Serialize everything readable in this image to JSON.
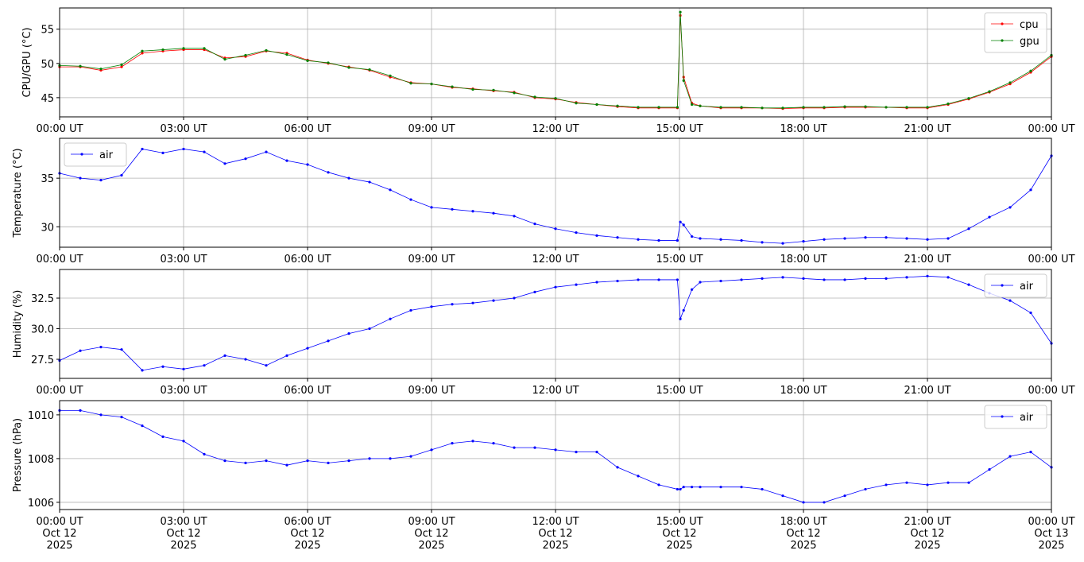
{
  "chart_data": [
    {
      "type": "line",
      "ylabel": "CPU/GPU (°C)",
      "legend": "upper right",
      "grid": true,
      "x": [
        0,
        0.5,
        1,
        1.5,
        2,
        2.5,
        3,
        3.5,
        4,
        4.5,
        5,
        5.5,
        6,
        6.5,
        7,
        7.5,
        8,
        8.5,
        9,
        9.5,
        10,
        10.5,
        11,
        11.5,
        12,
        12.5,
        13,
        13.5,
        14,
        14.5,
        14.95,
        15.02,
        15.1,
        15.3,
        15.5,
        16,
        16.5,
        17,
        17.5,
        18,
        18.5,
        19,
        19.5,
        20,
        20.5,
        21,
        21.5,
        22,
        22.5,
        23,
        23.5,
        24
      ],
      "xlim": [
        0,
        24
      ],
      "xticks": [
        {
          "value": 0,
          "label": "00:00 UT"
        },
        {
          "value": 3,
          "label": "03:00 UT"
        },
        {
          "value": 6,
          "label": "06:00 UT"
        },
        {
          "value": 9,
          "label": "09:00 UT"
        },
        {
          "value": 12,
          "label": "12:00 UT"
        },
        {
          "value": 15,
          "label": "15:00 UT"
        },
        {
          "value": 18,
          "label": "18:00 UT"
        },
        {
          "value": 21,
          "label": "21:00 UT"
        },
        {
          "value": 24,
          "label": "00:00 UT"
        }
      ],
      "ylim": [
        42.2,
        58.1
      ],
      "yticks": [
        45,
        50,
        55
      ],
      "series": [
        {
          "name": "cpu",
          "color": "#ff0000",
          "values": [
            49.5,
            49.5,
            49,
            49.5,
            51.5,
            51.8,
            52,
            52,
            50.8,
            51,
            51.8,
            51.5,
            50.5,
            50,
            49.5,
            49,
            48,
            47.2,
            47,
            46.5,
            46.3,
            46,
            45.8,
            45,
            44.8,
            44.3,
            44,
            43.7,
            43.5,
            43.5,
            43.5,
            57,
            48,
            44.2,
            43.8,
            43.5,
            43.5,
            43.5,
            43.4,
            43.5,
            43.5,
            43.6,
            43.6,
            43.6,
            43.5,
            43.5,
            44,
            44.8,
            45.8,
            47,
            48.7,
            51
          ]
        },
        {
          "name": "gpu",
          "color": "#008000",
          "values": [
            49.7,
            49.6,
            49.2,
            49.8,
            51.8,
            52,
            52.2,
            52.2,
            50.6,
            51.2,
            51.9,
            51.3,
            50.4,
            50.1,
            49.4,
            49.1,
            48.2,
            47.1,
            47,
            46.6,
            46.2,
            46.1,
            45.7,
            45.1,
            44.9,
            44.2,
            44,
            43.8,
            43.6,
            43.6,
            43.6,
            57.5,
            47.5,
            44,
            43.8,
            43.6,
            43.6,
            43.5,
            43.5,
            43.6,
            43.6,
            43.7,
            43.7,
            43.6,
            43.6,
            43.6,
            44.1,
            44.9,
            45.9,
            47.2,
            48.9,
            51.2
          ]
        }
      ]
    },
    {
      "type": "line",
      "ylabel": "Temperature (°C)",
      "legend": "upper left",
      "grid": true,
      "x": [
        0,
        0.5,
        1,
        1.5,
        2,
        2.5,
        3,
        3.5,
        4,
        4.5,
        5,
        5.5,
        6,
        6.5,
        7,
        7.5,
        8,
        8.5,
        9,
        9.5,
        10,
        10.5,
        11,
        11.5,
        12,
        12.5,
        13,
        13.5,
        14,
        14.5,
        14.95,
        15.02,
        15.1,
        15.3,
        15.5,
        16,
        16.5,
        17,
        17.5,
        18,
        18.5,
        19,
        19.5,
        20,
        20.5,
        21,
        21.5,
        22,
        22.5,
        23,
        23.5,
        24
      ],
      "xlim": [
        0,
        24
      ],
      "xticks": [
        {
          "value": 0,
          "label": "00:00 UT"
        },
        {
          "value": 3,
          "label": "03:00 UT"
        },
        {
          "value": 6,
          "label": "06:00 UT"
        },
        {
          "value": 9,
          "label": "09:00 UT"
        },
        {
          "value": 12,
          "label": "12:00 UT"
        },
        {
          "value": 15,
          "label": "15:00 UT"
        },
        {
          "value": 18,
          "label": "18:00 UT"
        },
        {
          "value": 21,
          "label": "21:00 UT"
        },
        {
          "value": 24,
          "label": "00:00 UT"
        }
      ],
      "ylim": [
        27.9,
        39.1
      ],
      "yticks": [
        30,
        35
      ],
      "series": [
        {
          "name": "air",
          "color": "#0000ff",
          "values": [
            35.5,
            35,
            34.8,
            35.3,
            38,
            37.6,
            38,
            37.7,
            36.5,
            37,
            37.7,
            36.8,
            36.4,
            35.6,
            35,
            34.6,
            33.8,
            32.8,
            32,
            31.8,
            31.6,
            31.4,
            31.1,
            30.3,
            29.8,
            29.4,
            29.1,
            28.9,
            28.7,
            28.6,
            28.6,
            30.5,
            30.2,
            29,
            28.8,
            28.7,
            28.6,
            28.4,
            28.3,
            28.5,
            28.7,
            28.8,
            28.9,
            28.9,
            28.8,
            28.7,
            28.8,
            29.8,
            31,
            32,
            33.8,
            37.3
          ]
        }
      ]
    },
    {
      "type": "line",
      "ylabel": "Humidity (%)",
      "legend": "upper right",
      "grid": true,
      "x": [
        0,
        0.5,
        1,
        1.5,
        2,
        2.5,
        3,
        3.5,
        4,
        4.5,
        5,
        5.5,
        6,
        6.5,
        7,
        7.5,
        8,
        8.5,
        9,
        9.5,
        10,
        10.5,
        11,
        11.5,
        12,
        12.5,
        13,
        13.5,
        14,
        14.5,
        14.95,
        15.02,
        15.1,
        15.3,
        15.5,
        16,
        16.5,
        17,
        17.5,
        18,
        18.5,
        19,
        19.5,
        20,
        20.5,
        21,
        21.5,
        22,
        22.5,
        23,
        23.5,
        24
      ],
      "xlim": [
        0,
        24
      ],
      "xticks": [
        {
          "value": 0,
          "label": "00:00 UT"
        },
        {
          "value": 3,
          "label": "03:00 UT"
        },
        {
          "value": 6,
          "label": "06:00 UT"
        },
        {
          "value": 9,
          "label": "09:00 UT"
        },
        {
          "value": 12,
          "label": "12:00 UT"
        },
        {
          "value": 15,
          "label": "15:00 UT"
        },
        {
          "value": 18,
          "label": "18:00 UT"
        },
        {
          "value": 21,
          "label": "21:00 UT"
        },
        {
          "value": 24,
          "label": "00:00 UT"
        }
      ],
      "ylim": [
        25.94,
        34.84
      ],
      "yticks": [
        {
          "value": 27.5,
          "label": "27.5"
        },
        {
          "value": 30,
          "label": "30.0"
        },
        {
          "value": 32.5,
          "label": "32.5"
        }
      ],
      "series": [
        {
          "name": "air",
          "color": "#0000ff",
          "values": [
            27.4,
            28.2,
            28.5,
            28.3,
            26.6,
            26.9,
            26.7,
            27,
            27.8,
            27.5,
            27,
            27.8,
            28.4,
            29,
            29.6,
            30,
            30.8,
            31.5,
            31.8,
            32,
            32.1,
            32.3,
            32.5,
            33,
            33.4,
            33.6,
            33.8,
            33.9,
            34,
            34,
            34,
            30.8,
            31.5,
            33.2,
            33.8,
            33.9,
            34,
            34.1,
            34.2,
            34.1,
            34,
            34,
            34.1,
            34.1,
            34.2,
            34.3,
            34.2,
            33.6,
            32.9,
            32.3,
            31.3,
            28.8
          ]
        }
      ]
    },
    {
      "type": "line",
      "ylabel": "Pressure (hPa)",
      "legend": "upper right",
      "grid": true,
      "x": [
        0,
        0.5,
        1,
        1.5,
        2,
        2.5,
        3,
        3.5,
        4,
        4.5,
        5,
        5.5,
        6,
        6.5,
        7,
        7.5,
        8,
        8.5,
        9,
        9.5,
        10,
        10.5,
        11,
        11.5,
        12,
        12.5,
        13,
        13.5,
        14,
        14.5,
        14.95,
        15.02,
        15.1,
        15.3,
        15.5,
        16,
        16.5,
        17,
        17.5,
        18,
        18.5,
        19,
        19.5,
        20,
        20.5,
        21,
        21.5,
        22,
        22.5,
        23,
        23.5,
        24
      ],
      "xlim": [
        0,
        24
      ],
      "xticks": [
        {
          "value": 0,
          "label": "00:00 UT\nOct 12\n2025"
        },
        {
          "value": 3,
          "label": "03:00 UT\nOct 12\n2025"
        },
        {
          "value": 6,
          "label": "06:00 UT\nOct 12\n2025"
        },
        {
          "value": 9,
          "label": "09:00 UT\nOct 12\n2025"
        },
        {
          "value": 12,
          "label": "12:00 UT\nOct 12\n2025"
        },
        {
          "value": 15,
          "label": "15:00 UT\nOct 12\n2025"
        },
        {
          "value": 18,
          "label": "18:00 UT\nOct 12\n2025"
        },
        {
          "value": 21,
          "label": "21:00 UT\nOct 12\n2025"
        },
        {
          "value": 24,
          "label": "00:00 UT\nOct 13\n2025"
        }
      ],
      "ylim": [
        1005.67,
        1010.65
      ],
      "yticks": [
        1006,
        1008,
        1010
      ],
      "series": [
        {
          "name": "air",
          "color": "#0000ff",
          "values": [
            1010.2,
            1010.2,
            1010,
            1009.9,
            1009.5,
            1009,
            1008.8,
            1008.2,
            1007.9,
            1007.8,
            1007.9,
            1007.7,
            1007.9,
            1007.8,
            1007.9,
            1008,
            1008,
            1008.1,
            1008.4,
            1008.7,
            1008.8,
            1008.7,
            1008.5,
            1008.5,
            1008.4,
            1008.3,
            1008.3,
            1007.6,
            1007.2,
            1006.8,
            1006.6,
            1006.6,
            1006.7,
            1006.7,
            1006.7,
            1006.7,
            1006.7,
            1006.6,
            1006.3,
            1006,
            1006,
            1006.3,
            1006.6,
            1006.8,
            1006.9,
            1006.8,
            1006.9,
            1006.9,
            1007.5,
            1008.1,
            1008.3,
            1007.6
          ]
        }
      ]
    }
  ]
}
